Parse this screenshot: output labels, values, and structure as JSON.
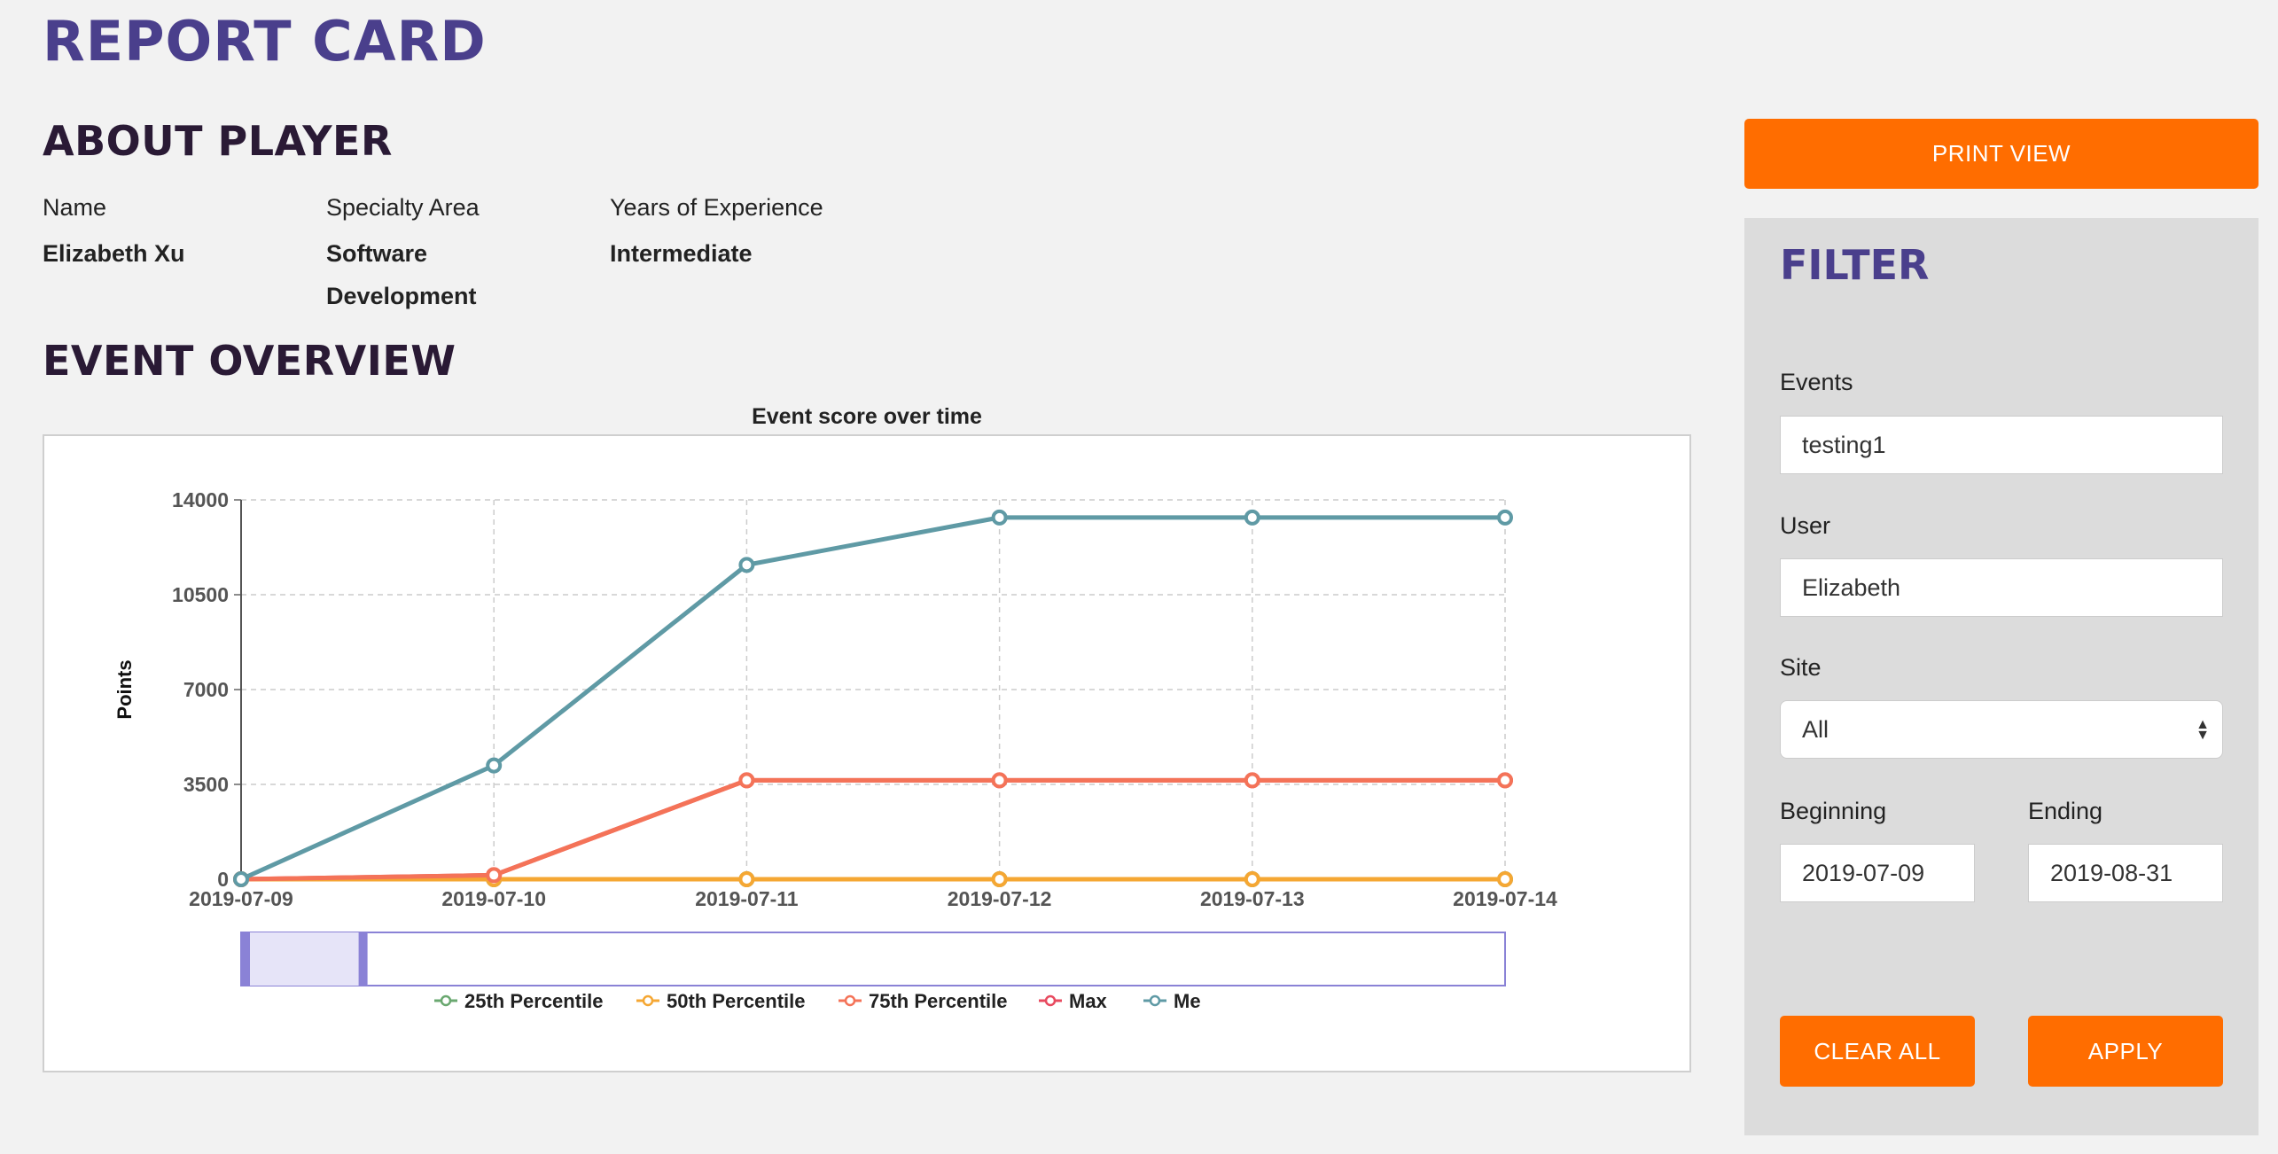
{
  "page": {
    "title": "REPORT CARD"
  },
  "about": {
    "title": "ABOUT PLAYER",
    "fields": [
      {
        "label": "Name",
        "value_lines": [
          "Elizabeth Xu"
        ]
      },
      {
        "label": "Specialty Area",
        "value_lines": [
          "Software",
          "Development"
        ]
      },
      {
        "label": "Years of Experience",
        "value_lines": [
          "Intermediate"
        ]
      }
    ]
  },
  "overview": {
    "title": "EVENT OVERVIEW"
  },
  "chart_data": {
    "type": "line",
    "title": "Event score over time",
    "xlabel": "",
    "ylabel": "Points",
    "x": [
      "2019-07-09",
      "2019-07-10",
      "2019-07-11",
      "2019-07-12",
      "2019-07-13",
      "2019-07-14"
    ],
    "ylim": [
      0,
      14000
    ],
    "yticks": [
      0,
      3500,
      7000,
      10500,
      14000
    ],
    "grid": true,
    "legend_position": "bottom",
    "series": [
      {
        "name": "25th Percentile",
        "color": "#6aa870",
        "values": [
          0,
          0,
          0,
          0,
          0,
          0
        ]
      },
      {
        "name": "50th Percentile",
        "color": "#f5a733",
        "values": [
          0,
          0,
          0,
          0,
          0,
          0
        ]
      },
      {
        "name": "75th Percentile",
        "color": "#f47358",
        "values": [
          0,
          150,
          3650,
          3650,
          3650,
          3650
        ]
      },
      {
        "name": "Max",
        "color": "#e84a5f",
        "values": [
          0,
          150,
          3650,
          3650,
          3650,
          3650
        ]
      },
      {
        "name": "Me",
        "color": "#5f9aa5",
        "values": [
          0,
          4200,
          11600,
          13350,
          13350,
          13350
        ]
      }
    ],
    "zoom_range": [
      0,
      0.1
    ]
  },
  "actions": {
    "print_label": "PRINT VIEW"
  },
  "filter": {
    "title": "FILTER",
    "events_label": "Events",
    "events_value": "testing1",
    "user_label": "User",
    "user_value": "Elizabeth",
    "site_label": "Site",
    "site_value": "All",
    "beginning_label": "Beginning",
    "beginning_value": "2019-07-09",
    "ending_label": "Ending",
    "ending_value": "2019-08-31",
    "clear_label": "CLEAR ALL",
    "apply_label": "APPLY"
  },
  "colors": {
    "accent": "#ff6d00",
    "title_purple": "#4a3f8c",
    "heading_dark": "#2a1a35"
  }
}
